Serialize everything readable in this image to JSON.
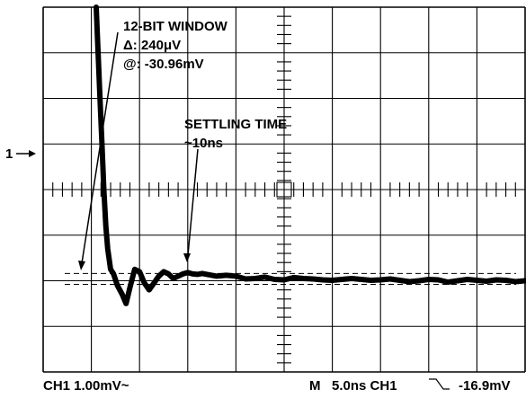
{
  "chart_data": {
    "type": "line",
    "x_unit": "ns",
    "y_unit": "mV",
    "xlim": [
      -5,
      45
    ],
    "ylim": [
      -4,
      4
    ],
    "grid": true,
    "channel_marker": "1",
    "annotations": {
      "window_title": "12-BIT WINDOW",
      "delta_text": "Δ: 240μV",
      "at_text": "@: -30.96mV",
      "settling_title": "SETTLING TIME",
      "settling_value": "~10ns"
    },
    "window_lines_mv": [
      -1.84,
      -2.08
    ],
    "series": [
      {
        "x": [
          0.5,
          0.7,
          0.9,
          1.1,
          1.3,
          1.5,
          1.7,
          2.0,
          2.3,
          2.7,
          3.2,
          3.6,
          4.0,
          4.5,
          5.0,
          5.5,
          6.0,
          6.5,
          7.0,
          7.5,
          8.0,
          8.5,
          9.0,
          9.5,
          10.0,
          10.5,
          11.0,
          11.5,
          12.0,
          13.0,
          14.0,
          15.0,
          16.0,
          17.0,
          18.0,
          19.0,
          20.0,
          21.0,
          22.0,
          23.0,
          24.0,
          25.0,
          26.0,
          27.0,
          28.0,
          29.0,
          30.0,
          31.0,
          32.0,
          33.0,
          34.0,
          35.0,
          36.0,
          37.0,
          38.0,
          39.0,
          40.0,
          41.0,
          42.0,
          43.0,
          44.0,
          45.0
        ],
        "y": [
          4.0,
          3.0,
          2.0,
          1.0,
          0.0,
          -0.8,
          -1.3,
          -1.75,
          -1.85,
          -2.1,
          -2.3,
          -2.5,
          -2.15,
          -1.75,
          -1.8,
          -2.05,
          -2.2,
          -2.05,
          -1.9,
          -1.8,
          -1.85,
          -1.95,
          -1.9,
          -1.85,
          -1.82,
          -1.85,
          -1.86,
          -1.84,
          -1.86,
          -1.9,
          -1.88,
          -1.9,
          -1.96,
          -1.95,
          -1.92,
          -1.97,
          -1.98,
          -1.93,
          -1.95,
          -1.96,
          -1.98,
          -1.99,
          -1.97,
          -1.95,
          -1.97,
          -1.99,
          -1.98,
          -1.96,
          -1.99,
          -2.02,
          -2.0,
          -1.97,
          -1.98,
          -2.03,
          -2.0,
          -1.97,
          -1.99,
          -2.01,
          -1.98,
          -1.99,
          -2.02,
          -2.0
        ]
      }
    ],
    "readouts": {
      "left": "CH1 1.00mV~",
      "right_m": "M",
      "right_timebase": "5.0ns CH1",
      "right_level": "-16.9mV"
    }
  }
}
